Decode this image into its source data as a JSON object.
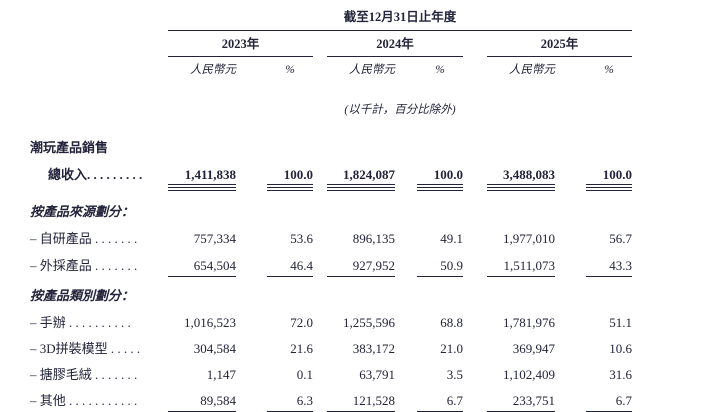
{
  "document": {
    "period_title": "截至12月31日止年度",
    "unit_note": "(以千計，百分比除外)",
    "years": [
      "2023年",
      "2024年",
      "2025年"
    ],
    "subhead": {
      "currency": "人民幣元",
      "percent": "%"
    },
    "rows": [
      {
        "label": "潮玩產品銷售"
      },
      {
        "label": "總收入. . . . . . . . .",
        "values": [
          [
            "1,411,838",
            "100.0"
          ],
          [
            "1,824,087",
            "100.0"
          ],
          [
            "3,488,083",
            "100.0"
          ]
        ]
      },
      {
        "label": "按產品來源劃分："
      },
      {
        "label": "– 自研產品 . . . . . . .",
        "values": [
          [
            "757,334",
            "53.6"
          ],
          [
            "896,135",
            "49.1"
          ],
          [
            "1,977,010",
            "56.7"
          ]
        ]
      },
      {
        "label": "– 外採產品 . . . . . . .",
        "values": [
          [
            "654,504",
            "46.4"
          ],
          [
            "927,952",
            "50.9"
          ],
          [
            "1,511,073",
            "43.3"
          ]
        ]
      },
      {
        "label": "按產品類別劃分："
      },
      {
        "label": "– 手辦 . . . . . . . . . .",
        "values": [
          [
            "1,016,523",
            "72.0"
          ],
          [
            "1,255,596",
            "68.8"
          ],
          [
            "1,781,976",
            "51.1"
          ]
        ]
      },
      {
        "label": "– 3D拼裝模型 . . . . .",
        "values": [
          [
            "304,584",
            "21.6"
          ],
          [
            "383,172",
            "21.0"
          ],
          [
            "369,947",
            "10.6"
          ]
        ]
      },
      {
        "label": "– 搪膠毛絨 . . . . . . .",
        "values": [
          [
            "1,147",
            "0.1"
          ],
          [
            "63,791",
            "3.5"
          ],
          [
            "1,102,409",
            "31.6"
          ]
        ]
      },
      {
        "label": "– 其他 . . . . . . . . . . .",
        "values": [
          [
            "89,584",
            "6.3"
          ],
          [
            "121,528",
            "6.7"
          ],
          [
            "233,751",
            "6.7"
          ]
        ]
      }
    ]
  }
}
